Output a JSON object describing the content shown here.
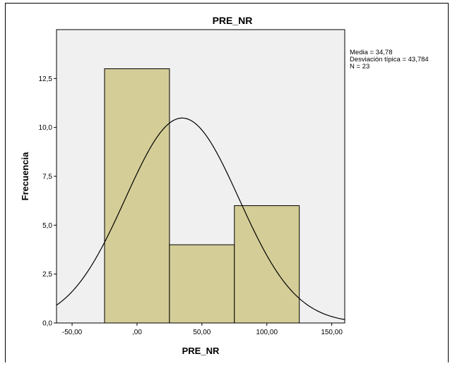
{
  "chart_data": {
    "type": "bar",
    "title": "PRE_NR",
    "xlabel": "PRE_NR",
    "ylabel": "Frecuencia",
    "xlim": [
      -62,
      160
    ],
    "ylim": [
      0,
      15
    ],
    "x_ticks": [
      -50,
      0,
      50,
      100,
      150
    ],
    "x_tick_labels": [
      "-50,00",
      ",00",
      "50,00",
      "100,00",
      "150,00"
    ],
    "y_ticks": [
      0,
      2.5,
      5,
      7.5,
      10,
      12.5
    ],
    "y_tick_labels": [
      "0,0",
      "2,5",
      "5,0",
      "7,5",
      "10,0",
      "12,5"
    ],
    "bins": [
      {
        "start": -25,
        "end": 25,
        "value": 13
      },
      {
        "start": 25,
        "end": 75,
        "value": 4
      },
      {
        "start": 75,
        "end": 125,
        "value": 6
      }
    ],
    "normal_curve": {
      "mean": 34.78,
      "sd": 43.784,
      "n": 23,
      "bin_width": 50
    },
    "stats_text": [
      "Media = 34,78",
      "Desviación típica = 43,784",
      "N = 23"
    ],
    "grid": false,
    "colors": {
      "bar_fill": "#d4cd97",
      "plot_bg": "#f0f0f0",
      "curve": "#000000"
    }
  }
}
